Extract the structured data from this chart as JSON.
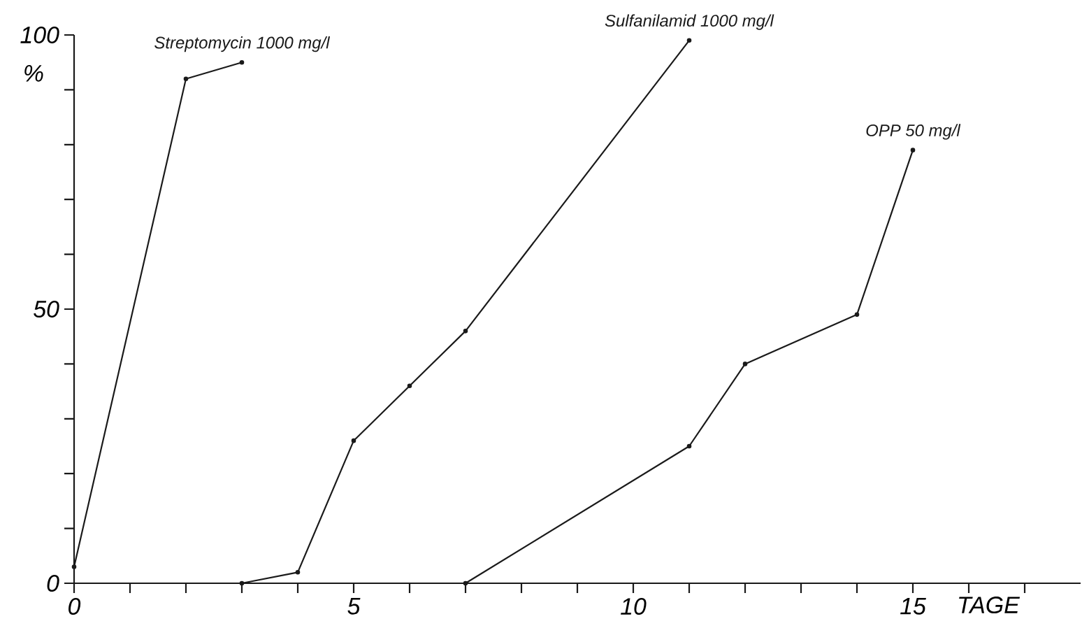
{
  "chart_data": {
    "type": "line",
    "xlabel": "TAGE",
    "ylabel": "%",
    "xlim": [
      0,
      18
    ],
    "ylim": [
      0,
      100
    ],
    "xticks": [
      0,
      {
        "value": 1,
        "label": null
      },
      {
        "value": 2,
        "label": null
      },
      {
        "value": 3,
        "label": null
      },
      {
        "value": 4,
        "label": null
      },
      5,
      {
        "value": 6,
        "label": null
      },
      {
        "value": 7,
        "label": null
      },
      {
        "value": 8,
        "label": null
      },
      {
        "value": 9,
        "label": null
      },
      10,
      {
        "value": 11,
        "label": null
      },
      {
        "value": 12,
        "label": null
      },
      {
        "value": 13,
        "label": null
      },
      {
        "value": 14,
        "label": null
      },
      15,
      {
        "value": 16,
        "label": null
      },
      {
        "value": 17,
        "label": null
      }
    ],
    "yticks": [
      0,
      {
        "value": 10,
        "label": null
      },
      {
        "value": 20,
        "label": null
      },
      {
        "value": 30,
        "label": null
      },
      {
        "value": 40,
        "label": null
      },
      50,
      {
        "value": 60,
        "label": null
      },
      {
        "value": 70,
        "label": null
      },
      {
        "value": 80,
        "label": null
      },
      {
        "value": 90,
        "label": null
      },
      100
    ],
    "marker": "circle",
    "line_style": "solid",
    "series": [
      {
        "name": "Streptomycin 1000 mg/l",
        "color": "#1a1a1a",
        "x": [
          0,
          2,
          3
        ],
        "values": [
          3,
          92,
          95
        ]
      },
      {
        "name": "Sulfanilamid 1000 mg/l",
        "color": "#1a1a1a",
        "x": [
          3,
          4,
          5,
          6,
          7,
          11
        ],
        "values": [
          0,
          2,
          26,
          36,
          46,
          99
        ]
      },
      {
        "name": "OPP 50 mg/l",
        "color": "#1a1a1a",
        "x": [
          7,
          11,
          12,
          14,
          15
        ],
        "values": [
          0,
          25,
          40,
          49,
          79
        ]
      }
    ]
  }
}
